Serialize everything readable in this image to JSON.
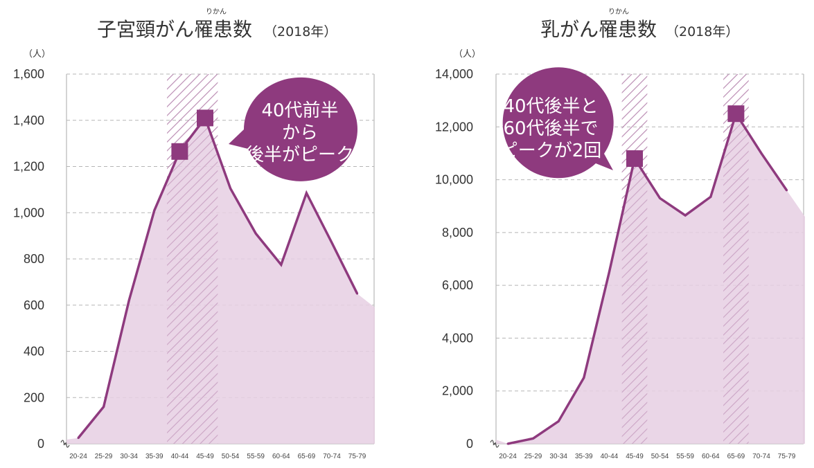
{
  "chart_data": [
    {
      "type": "area",
      "title": "子宮頸がん罹患数",
      "title_ruby": "りかん",
      "title_suffix": "（2018年）",
      "unit": "（人）",
      "categories": [
        "20-24",
        "25-29",
        "30-34",
        "35-39",
        "40-44",
        "45-49",
        "50-54",
        "55-59",
        "60-64",
        "65-69",
        "70-74",
        "75-79"
      ],
      "values": [
        25,
        160,
        620,
        1010,
        1265,
        1410,
        1105,
        910,
        775,
        1085,
        870,
        650
      ],
      "ylim": [
        0,
        1600
      ],
      "yticks": [
        "0",
        "200",
        "400",
        "600",
        "800",
        "1,000",
        "1,200",
        "1,400",
        "1,600"
      ],
      "highlight_bands": [
        "40-44",
        "45-49"
      ],
      "peak_markers": [
        "40-44",
        "45-49"
      ],
      "callout": [
        "40代前半",
        "から",
        "後半がピーク"
      ],
      "colors": {
        "line": "#8e3a7e",
        "fill": "#e6cfe3",
        "callout": "#8e3a7e",
        "hatch": "#b98ab1"
      }
    },
    {
      "type": "area",
      "title": "乳がん罹患数",
      "title_ruby": "りかん",
      "title_suffix": "（2018年）",
      "unit": "（人）",
      "categories": [
        "20-24",
        "25-29",
        "30-34",
        "35-39",
        "40-44",
        "45-49",
        "50-54",
        "55-59",
        "60-64",
        "65-69",
        "70-74",
        "75-79"
      ],
      "values": [
        0,
        200,
        850,
        2500,
        6500,
        10800,
        9300,
        8650,
        9350,
        12500,
        11000,
        9600
      ],
      "ylim": [
        0,
        14000
      ],
      "yticks": [
        "0",
        "2,000",
        "4,000",
        "6,000",
        "8,000",
        "10,000",
        "12,000",
        "14,000"
      ],
      "highlight_bands": [
        "45-49",
        "65-69"
      ],
      "peak_markers": [
        "45-49",
        "65-69"
      ],
      "callout": [
        "40代後半と",
        "60代後半で",
        "ピークが2回"
      ],
      "colors": {
        "line": "#8e3a7e",
        "fill": "#e6cfe3",
        "callout": "#8e3a7e",
        "hatch": "#b98ab1"
      }
    }
  ]
}
